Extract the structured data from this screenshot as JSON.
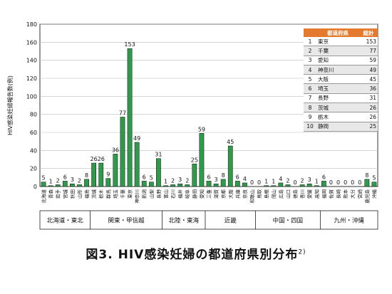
{
  "figure_caption": "図3. HIV感染妊婦の都道府県別分布",
  "caption_ref": "2)",
  "chart_data": {
    "type": "bar",
    "title": "",
    "xlabel": "",
    "ylabel": "HIV感染妊婦報告数(例)",
    "ylim": [
      0,
      180
    ],
    "yticks": [
      0,
      20,
      40,
      60,
      80,
      100,
      120,
      140,
      160,
      180
    ],
    "grid": true,
    "bar_color": "#2e9a4a",
    "categories": [
      "北海道",
      "青森",
      "岩手",
      "宮城",
      "秋田",
      "山形",
      "福島",
      "茨城",
      "栃木",
      "群馬",
      "埼玉",
      "千葉",
      "東京",
      "神奈川",
      "新潟",
      "山梨",
      "長野",
      "富山",
      "石川",
      "福井",
      "岐阜",
      "静岡",
      "愛知",
      "三重",
      "滋賀",
      "京都",
      "大阪",
      "兵庫",
      "奈良",
      "和歌山",
      "鳥取",
      "島根",
      "岡山",
      "広島",
      "山口",
      "徳島",
      "香川",
      "愛媛",
      "高知",
      "福岡",
      "佐賀",
      "長崎",
      "熊本",
      "大分",
      "宮崎",
      "鹿児島",
      "沖縄"
    ],
    "values": [
      5,
      1,
      2,
      6,
      3,
      2,
      8,
      26,
      26,
      9,
      36,
      77,
      153,
      49,
      6,
      5,
      31,
      1,
      2,
      3,
      2,
      25,
      59,
      6,
      3,
      8,
      45,
      6,
      4,
      0,
      0,
      1,
      1,
      4,
      2,
      0,
      2,
      3,
      1,
      6,
      0,
      0,
      0,
      0,
      0,
      8,
      5
    ],
    "regions": [
      {
        "name": "北海道・東北",
        "start": 0,
        "end": 6
      },
      {
        "name": "関東・甲信越",
        "start": 7,
        "end": 16
      },
      {
        "name": "北陸・東海",
        "start": 17,
        "end": 22
      },
      {
        "name": "近畿",
        "start": 23,
        "end": 29
      },
      {
        "name": "中国・四国",
        "start": 30,
        "end": 38
      },
      {
        "name": "九州・沖縄",
        "start": 39,
        "end": 46
      }
    ]
  },
  "ranking_table": {
    "headers": [
      "",
      "都道府県",
      "総計"
    ],
    "rows": [
      {
        "rank": "1",
        "pref": "東京",
        "total": "153"
      },
      {
        "rank": "2",
        "pref": "千葉",
        "total": "77"
      },
      {
        "rank": "3",
        "pref": "愛知",
        "total": "59"
      },
      {
        "rank": "4",
        "pref": "神奈川",
        "total": "49"
      },
      {
        "rank": "5",
        "pref": "大阪",
        "total": "45"
      },
      {
        "rank": "6",
        "pref": "埼玉",
        "total": "36"
      },
      {
        "rank": "7",
        "pref": "長野",
        "total": "31"
      },
      {
        "rank": "8",
        "pref": "茨城",
        "total": "26"
      },
      {
        "rank": "9",
        "pref": "栃木",
        "total": "26"
      },
      {
        "rank": "10",
        "pref": "静岡",
        "total": "25"
      }
    ]
  }
}
